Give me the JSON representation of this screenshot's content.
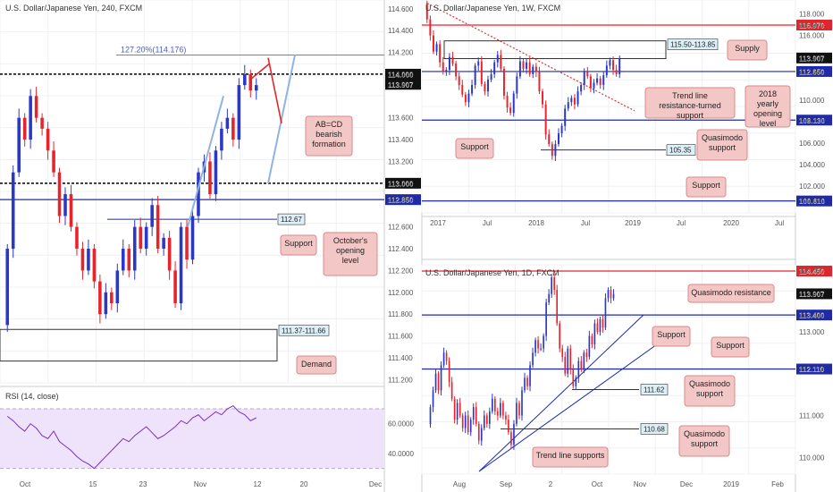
{
  "colors": {
    "bull": "#2b38c7",
    "bear": "#e8232b",
    "support_line": "#1e2aa8",
    "resist_line": "#e0262d",
    "label_bg": "#f4c7c7",
    "label_border": "#d98a8a",
    "rsi_line": "#7b2fbf",
    "rsi_band": "#efe3fb",
    "price_tag_bg": "#ddf0f7"
  },
  "chart_data": [
    {
      "type": "candlestick",
      "title": "U.S. Dollar/Japanese Yen, 240, FXCM",
      "x_ticks": [
        "Oct",
        "15",
        "23",
        "Nov",
        "12",
        "20",
        "Dec"
      ],
      "ylim": [
        111.17,
        114.68
      ],
      "y_ticks": [
        "114.600",
        "114.400",
        "114.200",
        "114.000",
        "113.907",
        "113.600",
        "113.400",
        "113.200",
        "113.000",
        "112.850",
        "112.600",
        "112.400",
        "112.200",
        "112.000",
        "111.800",
        "111.600",
        "111.400",
        "111.200"
      ],
      "levels": [
        {
          "value": 114.176,
          "label": "127.20%(114.176)",
          "style": "fib"
        },
        {
          "value": 114.0,
          "tag": "114.000",
          "style": "dotted"
        },
        {
          "value": 113.907,
          "tag": "113.907",
          "style": "current"
        },
        {
          "value": 113.0,
          "tag": "113.000",
          "style": "dotted"
        },
        {
          "value": 112.85,
          "tag": "112.850",
          "style": "support"
        },
        {
          "value": 112.67,
          "tag": "112.67",
          "style": "support-short"
        }
      ],
      "zones": [
        {
          "label": "111.37-111.66",
          "low": 111.37,
          "high": 111.66
        }
      ],
      "annotations": [
        "AB=CD bearish formation",
        "Support",
        "October's opening level",
        "Demand"
      ],
      "close": [
        112.4,
        113.1,
        113.6,
        113.4,
        113.8,
        113.6,
        113.5,
        113.3,
        113.1,
        112.7,
        112.9,
        112.6,
        112.4,
        112.2,
        112.4,
        112.1,
        111.8,
        112.0,
        111.9,
        112.2,
        112.4,
        112.2,
        112.6,
        112.4,
        112.6,
        112.8,
        112.4,
        112.5,
        112.2,
        111.9,
        112.6,
        112.3,
        112.7,
        113.1,
        113.2,
        112.9,
        113.3,
        113.5,
        113.6,
        113.4,
        113.9,
        114.0,
        113.85,
        113.9
      ]
    },
    {
      "type": "line",
      "title": "RSI (14, close)",
      "y_ticks": [
        "60.0000",
        "40.0000"
      ],
      "ylim": [
        25,
        85
      ],
      "band": [
        30,
        70
      ],
      "values": [
        65,
        62,
        58,
        55,
        60,
        57,
        52,
        50,
        55,
        48,
        45,
        42,
        38,
        35,
        33,
        30,
        34,
        38,
        42,
        46,
        50,
        48,
        52,
        55,
        58,
        54,
        50,
        52,
        55,
        58,
        62,
        60,
        64,
        66,
        62,
        65,
        68,
        66,
        70,
        72,
        68,
        66,
        62,
        64
      ]
    },
    {
      "type": "candlestick",
      "title": "U.S. Dollar/Japanese Yen, 1W, FXCM",
      "x_ticks": [
        "2017",
        "Jul",
        "2018",
        "Jul",
        "2019",
        "Jul",
        "2020",
        "Jul"
      ],
      "ylim": [
        99.5,
        119.3
      ],
      "y_ticks": [
        "118.000",
        "116.970",
        "116.000",
        "113.907",
        "112.650",
        "110.000",
        "108.130",
        "106.000",
        "104.000",
        "102.000",
        "100.610"
      ],
      "levels": [
        {
          "value": 116.97,
          "tag": "116.970",
          "style": "resistance"
        },
        {
          "value": 113.907,
          "tag": "113.907",
          "style": "current"
        },
        {
          "value": 112.65,
          "tag": "112.650",
          "style": "support"
        },
        {
          "value": 108.13,
          "tag": "108.130",
          "style": "support"
        },
        {
          "value": 100.61,
          "tag": "100.610",
          "style": "support"
        },
        {
          "value": 105.35,
          "tag": "105.35",
          "style": "support-short"
        }
      ],
      "zones": [
        {
          "label": "115.50-113.85",
          "low": 113.85,
          "high": 115.5
        }
      ],
      "annotations": [
        "Supply",
        "Trend line resistance-turned support",
        "2018 yearly opening level",
        "Support",
        "Quasimodo support",
        "Support"
      ],
      "close": [
        117.5,
        116.0,
        114.5,
        115.2,
        113.5,
        112.6,
        112.8,
        114.0,
        113.4,
        112.2,
        111.4,
        110.5,
        109.8,
        110.6,
        111.4,
        113.2,
        113.6,
        111.5,
        110.8,
        111.9,
        112.4,
        113.5,
        114.2,
        112.9,
        110.4,
        109.3,
        108.8,
        110.6,
        112.2,
        113.6,
        112.9,
        113.5,
        112.4,
        113.1,
        112.6,
        110.8,
        109.6,
        106.8,
        105.9,
        104.8,
        105.9,
        106.9,
        107.6,
        109.2,
        109.8,
        110.2,
        109.6,
        110.8,
        111.4,
        112.6,
        112.2,
        111.1,
        111.6,
        112.0,
        111.4,
        112.3,
        113.2,
        113.7,
        112.8,
        112.4,
        113.9
      ]
    },
    {
      "type": "candlestick",
      "title": "U.S. Dollar/Japanese Yen, 1D, FXCM",
      "x_ticks": [
        "Aug",
        "Sep",
        "2",
        "Oct",
        "Nov",
        "Dec",
        "2019",
        "Feb"
      ],
      "ylim": [
        109.6,
        114.6
      ],
      "y_ticks": [
        "114.450",
        "113.907",
        "113.400",
        "113.000",
        "112.110",
        "111.000",
        "110.000"
      ],
      "levels": [
        {
          "value": 114.45,
          "tag": "114.450",
          "style": "resistance"
        },
        {
          "value": 113.907,
          "tag": "113.907",
          "style": "current"
        },
        {
          "value": 113.4,
          "tag": "113.400",
          "style": "support"
        },
        {
          "value": 112.11,
          "tag": "112.110",
          "style": "support"
        },
        {
          "value": 111.62,
          "tag": "111.62",
          "style": "support-short"
        },
        {
          "value": 110.68,
          "tag": "110.68",
          "style": "support-short"
        }
      ],
      "annotations": [
        "Quasimodo resistance",
        "Support",
        "Support",
        "Quasimodo support",
        "Quasimodo support",
        "Trend line supports"
      ],
      "close": [
        111.2,
        111.6,
        112.0,
        111.6,
        112.2,
        112.5,
        112.3,
        111.8,
        111.4,
        110.9,
        111.3,
        111.0,
        110.7,
        111.0,
        110.6,
        110.9,
        111.2,
        110.8,
        110.4,
        110.7,
        111.0,
        110.8,
        111.1,
        111.4,
        111.1,
        111.0,
        111.3,
        111.0,
        110.9,
        110.6,
        110.3,
        110.8,
        111.3,
        111.0,
        111.6,
        111.9,
        111.7,
        112.2,
        112.5,
        112.8,
        112.6,
        112.6,
        112.9,
        113.7,
        113.9,
        114.3,
        114.0,
        113.2,
        112.6,
        112.4,
        112.0,
        112.6,
        112.1,
        111.7,
        111.9,
        112.3,
        112.1,
        112.5,
        112.4,
        112.9,
        112.7,
        113.2,
        113.0,
        113.3,
        113.1,
        113.8,
        114.0,
        113.8,
        113.9
      ]
    }
  ]
}
